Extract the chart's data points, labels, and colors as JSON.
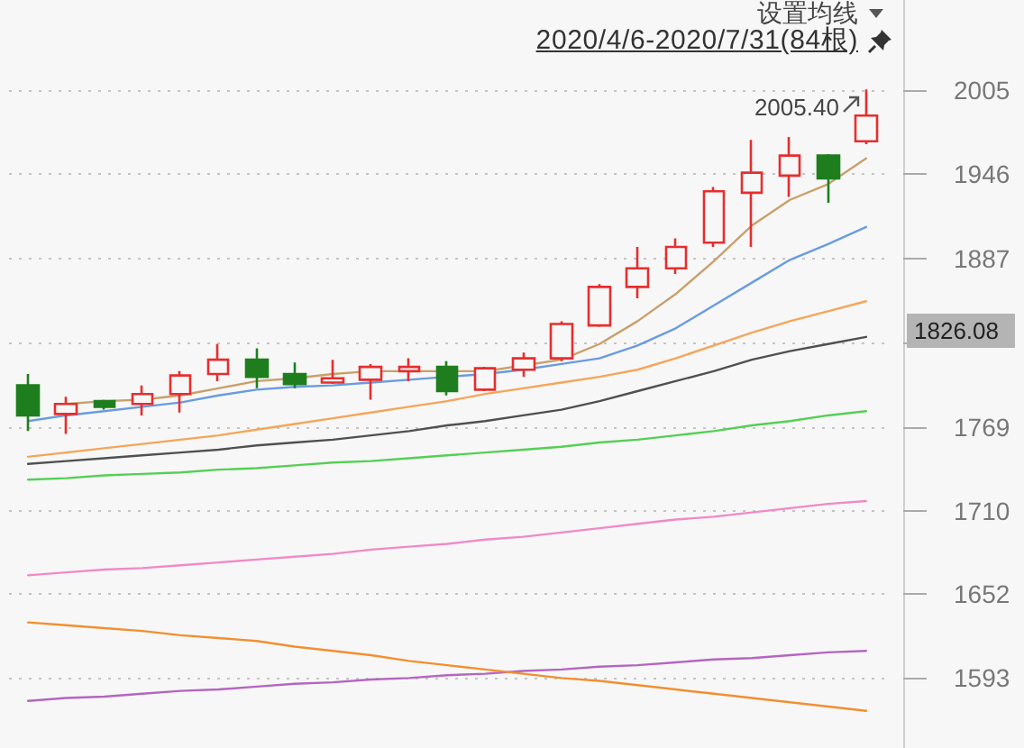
{
  "chart_data": {
    "type": "candlestick",
    "subtitle": "2020/4/6-2020/7/31(84根)",
    "annotations": [
      "设置均线",
      "2005.40",
      "1826.08"
    ],
    "categories": [
      null,
      null,
      null,
      null,
      null,
      null,
      null,
      null,
      null,
      null,
      null,
      null,
      null,
      null,
      null,
      null,
      null,
      null,
      null,
      null,
      null,
      null,
      null
    ],
    "ohlc": [
      [
        1798,
        1806,
        1766,
        1777
      ],
      [
        1778,
        1790,
        1764,
        1785
      ],
      [
        1787,
        1788,
        1781,
        1783
      ],
      [
        1785,
        1798,
        1777,
        1792
      ],
      [
        1792,
        1808,
        1779,
        1805
      ],
      [
        1806,
        1827,
        1801,
        1816
      ],
      [
        1816,
        1824,
        1796,
        1804
      ],
      [
        1806,
        1814,
        1796,
        1799
      ],
      [
        1800,
        1816,
        1799,
        1803
      ],
      [
        1802,
        1813,
        1788,
        1811
      ],
      [
        1808,
        1817,
        1801,
        1811
      ],
      [
        1811,
        1815,
        1791,
        1794
      ],
      [
        1795,
        1811,
        1794,
        1810
      ],
      [
        1809,
        1821,
        1804,
        1817
      ],
      [
        1817,
        1843,
        1815,
        1841
      ],
      [
        1840,
        1869,
        1839,
        1867
      ],
      [
        1867,
        1895,
        1859,
        1880
      ],
      [
        1880,
        1901,
        1876,
        1895
      ],
      [
        1898,
        1937,
        1895,
        1934
      ],
      [
        1933,
        1970,
        1895,
        1947
      ],
      [
        1945,
        1972,
        1930,
        1959
      ],
      [
        1959,
        1960,
        1926,
        1943
      ],
      [
        1969,
        2005.4,
        1967,
        1987
      ]
    ],
    "colors": [
      "#1e7e1e",
      "#e62e2e",
      "#1e7e1e",
      "#e62e2e",
      "#e62e2e",
      "#e62e2e",
      "#1e7e1e",
      "#1e7e1e",
      "#e62e2e",
      "#e62e2e",
      "#e62e2e",
      "#1e7e1e",
      "#e62e2e",
      "#e62e2e",
      "#e62e2e",
      "#e62e2e",
      "#e62e2e",
      "#e62e2e",
      "#e62e2e",
      "#e62e2e",
      "#e62e2e",
      "#1e7e1e",
      "#e62e2e"
    ],
    "series": [
      {
        "type": "line",
        "color": "#c9a06a",
        "values": [
          null,
          1785,
          1787,
          1788,
          1791,
          1796,
          1801,
          1803,
          1806,
          1808,
          1808,
          1808,
          1808,
          1812,
          1816,
          1827,
          1843,
          1862,
          1885,
          1910,
          1928,
          1939,
          1957
        ]
      },
      {
        "type": "line",
        "color": "#6a9be0",
        "values": [
          1773,
          1777,
          1780,
          1783,
          1786,
          1791,
          1795,
          1797,
          1798,
          1800,
          1802,
          1804,
          1806,
          1809,
          1813,
          1817,
          1826,
          1838,
          1854,
          1870,
          1886,
          1897,
          1909
        ]
      },
      {
        "type": "line",
        "color": "#f5a55a",
        "values": [
          1748,
          1751,
          1754,
          1757,
          1760,
          1763,
          1767,
          1771,
          1775,
          1779,
          1783,
          1787,
          1792,
          1796,
          1800,
          1804,
          1809,
          1817,
          1826,
          1835,
          1843,
          1850,
          1857
        ]
      },
      {
        "type": "line",
        "color": "#505050",
        "values": [
          1743,
          1745,
          1747,
          1749,
          1751,
          1753,
          1756,
          1758,
          1760,
          1763,
          1766,
          1770,
          1773,
          1777,
          1781,
          1787,
          1794,
          1801,
          1808,
          1816,
          1822,
          1827,
          1832
        ]
      },
      {
        "type": "line",
        "color": "#55cf55",
        "values": [
          1732,
          1733,
          1735,
          1736,
          1737,
          1739,
          1740,
          1742,
          1744,
          1745,
          1747,
          1749,
          1751,
          1753,
          1755,
          1758,
          1760,
          1763,
          1766,
          1770,
          1773,
          1777,
          1780
        ]
      },
      {
        "type": "line",
        "color": "#f08ac8",
        "values": [
          1665,
          1667,
          1669,
          1670,
          1672,
          1674,
          1676,
          1678,
          1680,
          1683,
          1685,
          1687,
          1690,
          1692,
          1695,
          1698,
          1701,
          1704,
          1706,
          1709,
          1712,
          1715,
          1717
        ]
      },
      {
        "type": "line",
        "color": "#b565c0",
        "values": [
          1577,
          1579,
          1580,
          1582,
          1584,
          1585,
          1587,
          1589,
          1590,
          1592,
          1593,
          1595,
          1596,
          1598,
          1599,
          1601,
          1602,
          1604,
          1606,
          1607,
          1609,
          1611,
          1612
        ]
      },
      {
        "type": "line",
        "color": "#f09030",
        "values": [
          1632,
          1630,
          1628,
          1626,
          1623,
          1621,
          1619,
          1615,
          1612,
          1609,
          1605,
          1602,
          1599,
          1596,
          1593,
          1591,
          1588,
          1585,
          1582,
          1579,
          1576,
          1573,
          1570
        ]
      }
    ],
    "ylim": [
      1544,
      2068
    ],
    "yticks": [
      1593,
      1652,
      1710,
      1769,
      {
        "value": 1828,
        "label": null
      },
      1887,
      1946,
      2005
    ],
    "grid": "y",
    "tick_labels": "y"
  }
}
